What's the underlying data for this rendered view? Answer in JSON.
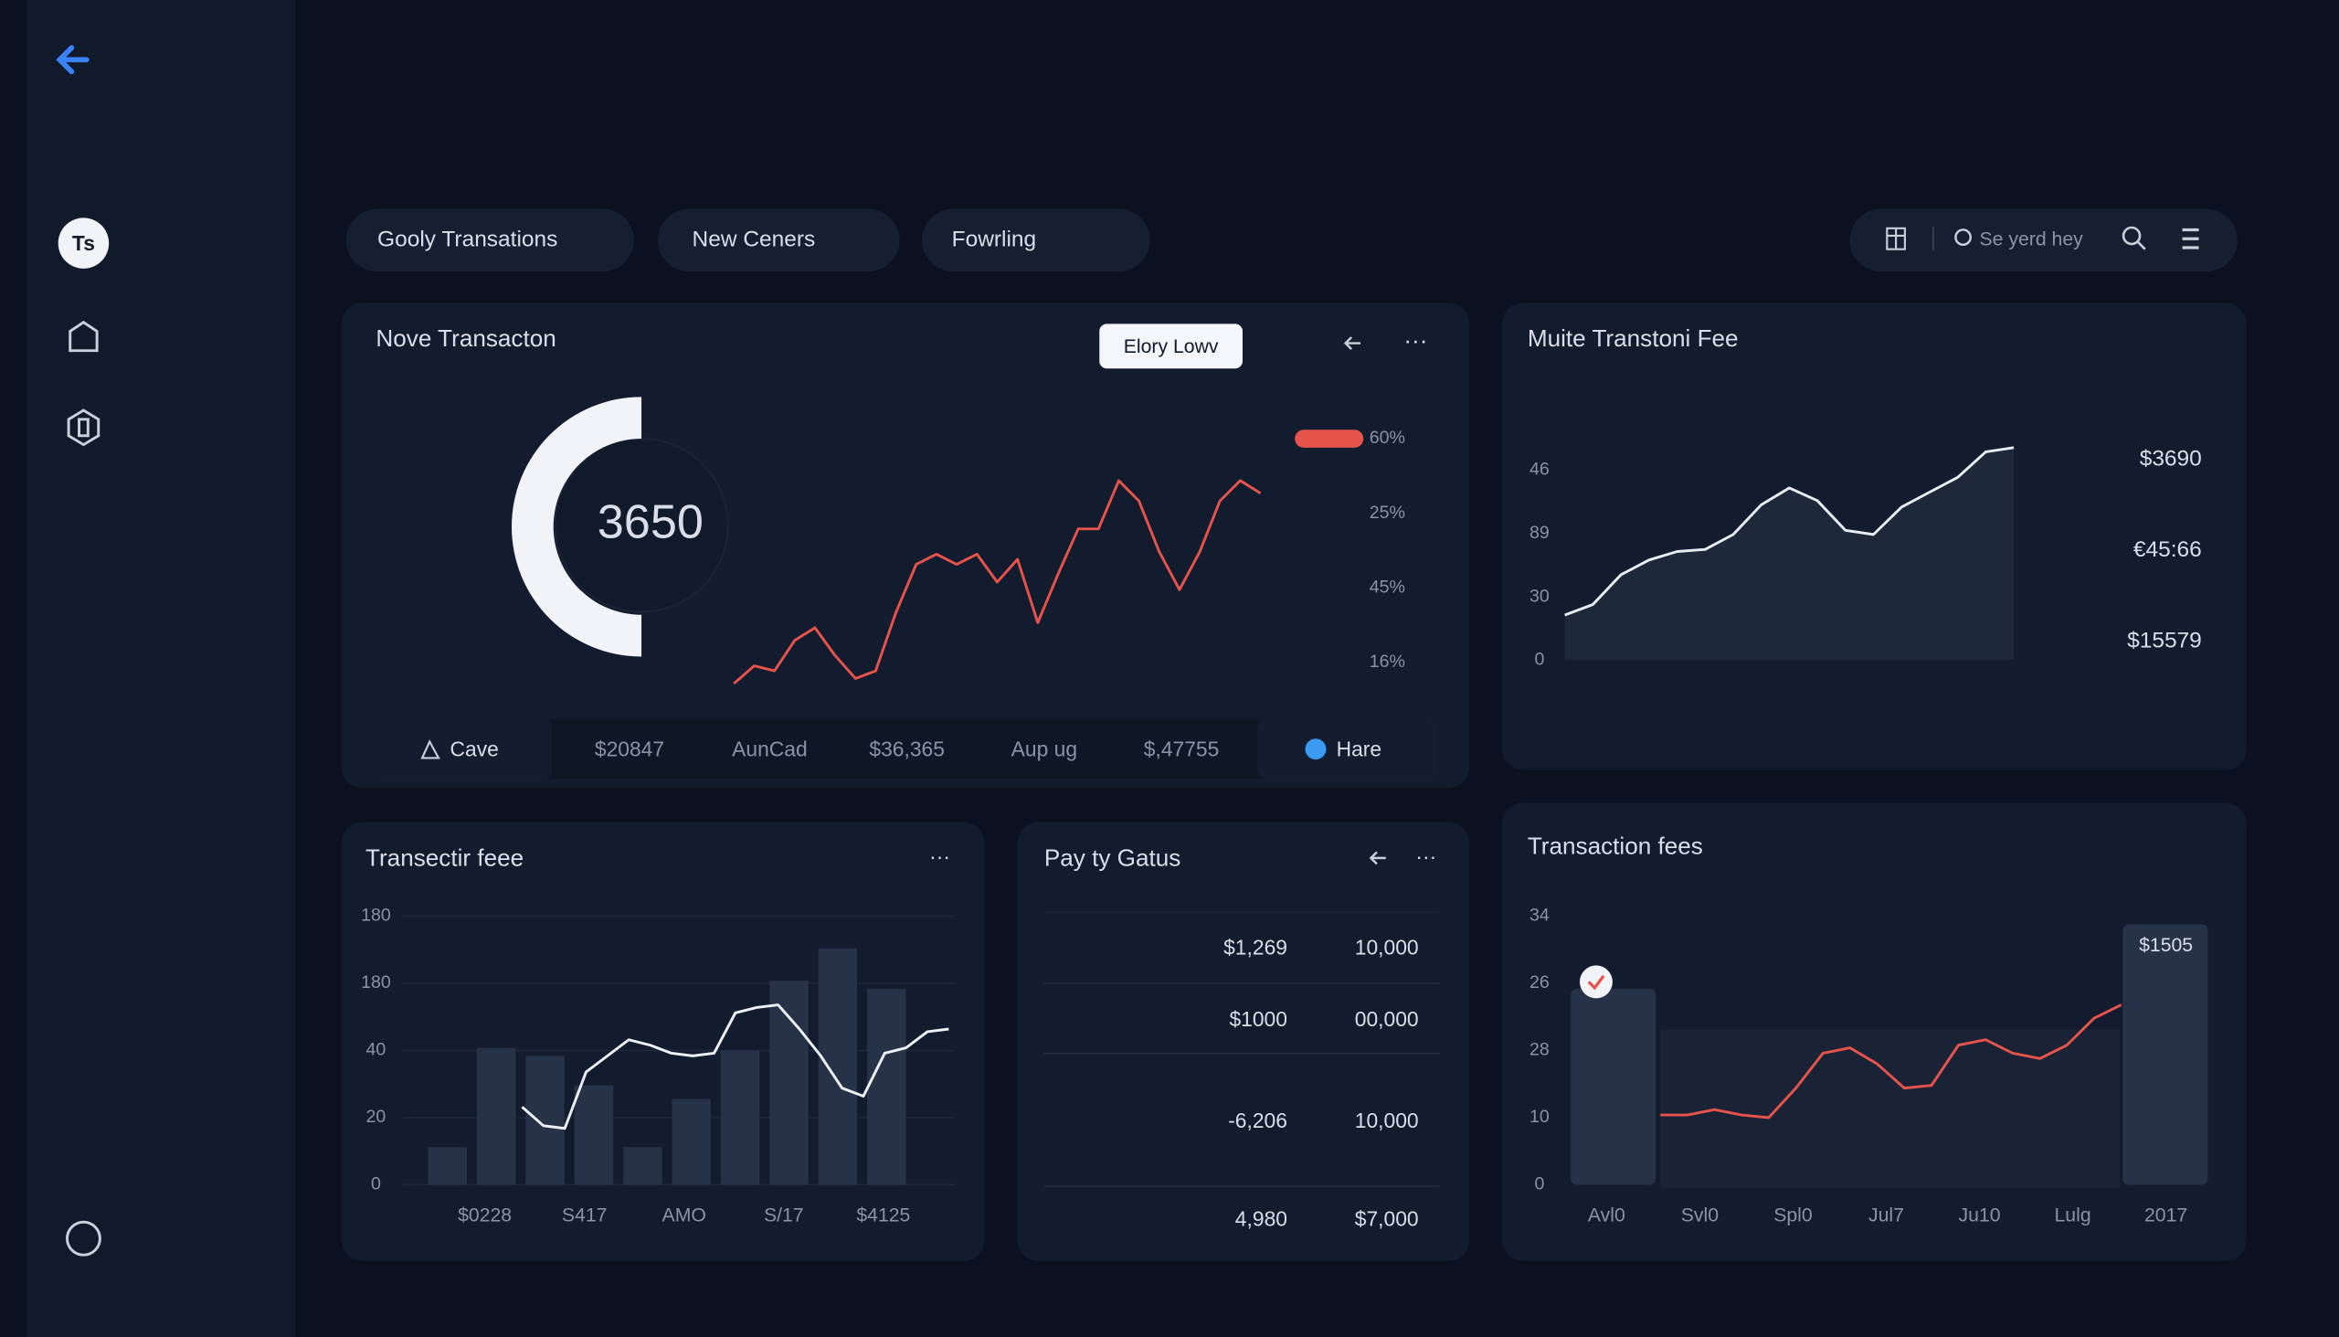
{
  "sidebar": {
    "avatar": "Ts"
  },
  "tabs": [
    "Gooly Transations",
    "New Ceners",
    "Fowrling"
  ],
  "search": {
    "placeholder": "Se yerd hey"
  },
  "transactions_panel": {
    "title": "Nove Transacton",
    "button": "Elory Lowv",
    "gauge_value": "3650",
    "axis_labels": [
      "60%",
      "25%",
      "45%",
      "16%"
    ],
    "line": {
      "color": "#e5534b",
      "ylim": [
        0,
        100
      ],
      "values": [
        7,
        14,
        12,
        24,
        29,
        18,
        9,
        12,
        35,
        54,
        58,
        54,
        58,
        47,
        56,
        31,
        50,
        68,
        68,
        87,
        79,
        59,
        44,
        59,
        79,
        87,
        82
      ]
    },
    "footer": [
      "Cave",
      "$20847",
      "AunCad",
      "$36,365",
      "Aup ug",
      "$,47755",
      "Hare"
    ]
  },
  "fee_panel": {
    "title": "Muite Transtoni Fee",
    "axis_labels": [
      "46",
      "89",
      "30",
      "0"
    ],
    "totals": [
      "$3690",
      "€45:66",
      "$15579"
    ],
    "area": {
      "ylim": [
        0,
        100
      ],
      "values": [
        21,
        26,
        40,
        47,
        51,
        52,
        59,
        73,
        81,
        75,
        61,
        59,
        72,
        79,
        86,
        98,
        100
      ]
    }
  },
  "fees_chart": {
    "title": "Transectir feee",
    "axis_labels": [
      "180",
      "180",
      "40",
      "20",
      "0"
    ],
    "x_labels": [
      "$0228",
      "S417",
      "AMO",
      "S/17",
      "$4125"
    ],
    "ylim": [
      0,
      100
    ],
    "bars": [
      14,
      51,
      48,
      37,
      14,
      32,
      50,
      76,
      88,
      73
    ],
    "line": [
      29,
      22,
      21,
      42,
      48,
      54,
      52,
      49,
      48,
      49,
      64,
      66,
      67,
      58,
      48,
      36,
      33,
      49,
      51,
      57,
      58
    ]
  },
  "payment_status": {
    "title": "Pay ty Gatus",
    "rows": [
      [
        "$1,269",
        "10,000"
      ],
      [
        "$1000",
        "00,000"
      ],
      [
        "-6,206",
        "10,000"
      ],
      [
        "4,980",
        "$7,000"
      ]
    ]
  },
  "transaction_fees": {
    "title": "Transaction fees",
    "axis_labels": [
      "34",
      "26",
      "28",
      "10",
      "0"
    ],
    "x_labels": [
      "Avl0",
      "Svl0",
      "Spl0",
      "Jul7",
      "Ju10",
      "Lulg",
      "2017"
    ],
    "ylim": [
      0,
      100
    ],
    "bars": [
      73,
      97
    ],
    "bar_label": "$1505",
    "line": [
      26,
      26,
      28,
      26,
      25,
      36,
      49,
      51,
      45,
      36,
      37,
      52,
      54,
      49,
      47,
      52,
      62,
      67
    ]
  }
}
